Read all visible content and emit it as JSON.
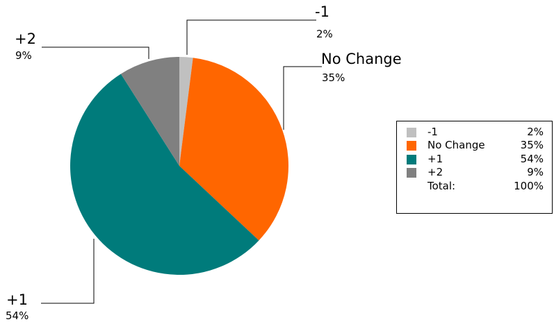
{
  "chart_data": {
    "type": "pie",
    "title": "",
    "start_angle_deg": 0,
    "direction": "clockwise",
    "slices": [
      {
        "label": "-1",
        "value": 2,
        "pct_label": "2%",
        "color": "#c0c0c0",
        "callout_side": "top"
      },
      {
        "label": "No Change",
        "value": 35,
        "pct_label": "35%",
        "color": "#ff6600",
        "callout_side": "right"
      },
      {
        "label": "+1",
        "value": 54,
        "pct_label": "54%",
        "color": "#007b7b",
        "callout_side": "left"
      },
      {
        "label": "+2",
        "value": 9,
        "pct_label": "9%",
        "color": "#808080",
        "callout_side": "left"
      }
    ],
    "legend": {
      "placement": "right",
      "total_label": "Total:",
      "total_value": "100%"
    }
  }
}
